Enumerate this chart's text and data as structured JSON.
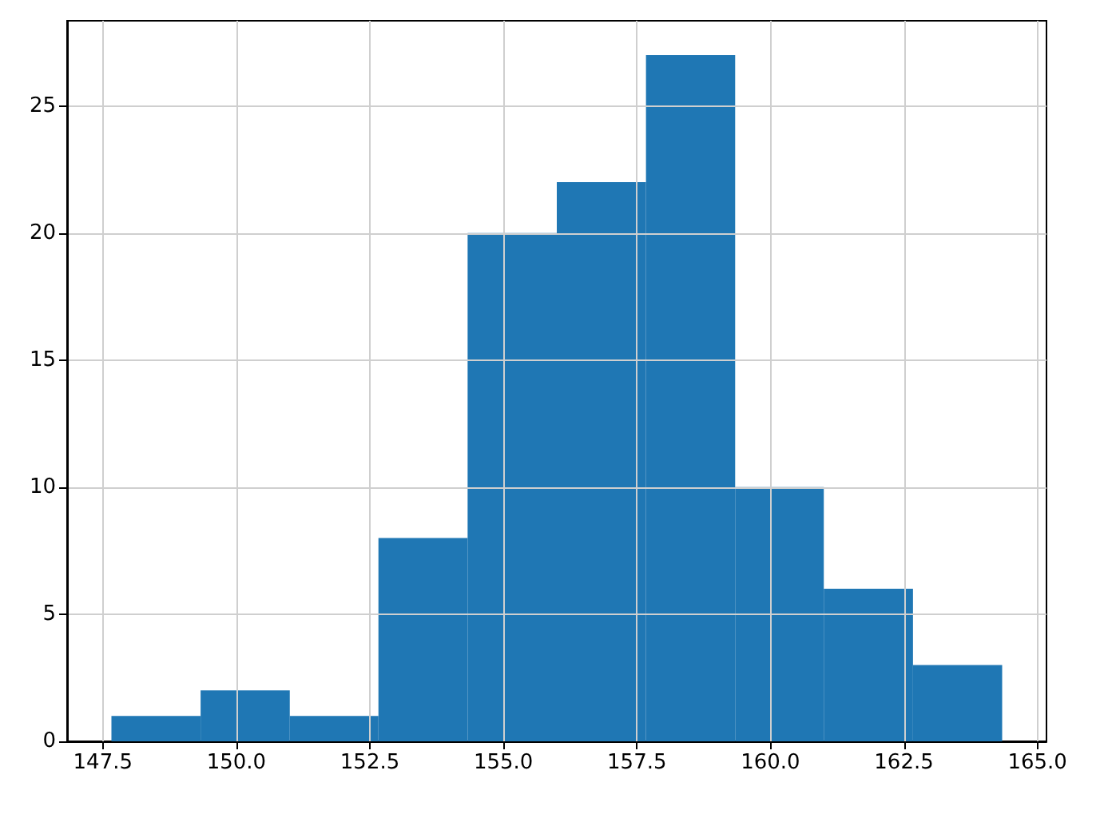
{
  "chart_data": {
    "type": "histogram",
    "bins": [
      147.66,
      149.33,
      151.0,
      152.66,
      154.33,
      156.0,
      157.67,
      159.34,
      161.0,
      162.67,
      164.34
    ],
    "values": [
      1,
      2,
      1,
      8,
      20,
      22,
      27,
      10,
      6,
      3
    ],
    "color": "#1f77b4",
    "xlim": [
      146.83,
      165.17
    ],
    "xticks": [
      147.5,
      {
        "value": 150,
        "label": "150.0"
      },
      152.5,
      {
        "value": 155,
        "label": "155.0"
      },
      157.5,
      {
        "value": 160,
        "label": "160.0"
      },
      162.5,
      {
        "value": 165,
        "label": "165.0"
      }
    ],
    "ylim": [
      0,
      28.35
    ],
    "yticks": [
      0,
      5,
      10,
      15,
      20,
      25
    ],
    "grid": true
  }
}
